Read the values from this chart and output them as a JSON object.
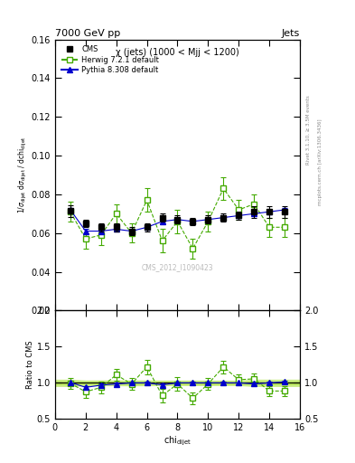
{
  "title_top": "7000 GeV pp",
  "title_top_right": "Jets",
  "annotation": "χ (jets) (1000 < Mjj < 1200)",
  "watermark": "CMS_2012_I1090423",
  "right_label": "Rivet 3.1.10, ≥ 3.5M events",
  "right_label2": "mcplots.cern.ch [arXiv:1306.3436]",
  "xlabel": "chi$_{dijet}$",
  "ylabel": "1/σ$_{dijet}$ dσ$_{dijet}$ / dchi$_{dijet}$",
  "ylabel_ratio": "Ratio to CMS",
  "ylim_main": [
    0.02,
    0.16
  ],
  "ylim_ratio": [
    0.5,
    2.0
  ],
  "xlim": [
    0,
    16
  ],
  "yticks_main": [
    0.02,
    0.04,
    0.06,
    0.08,
    0.1,
    0.12,
    0.14,
    0.16
  ],
  "yticks_ratio": [
    0.5,
    1.0,
    1.5,
    2.0
  ],
  "cms_x": [
    1,
    2,
    3,
    4,
    5,
    6,
    7,
    8,
    9,
    10,
    11,
    12,
    13,
    14,
    15
  ],
  "cms_y": [
    0.0715,
    0.065,
    0.063,
    0.063,
    0.061,
    0.063,
    0.068,
    0.067,
    0.066,
    0.067,
    0.068,
    0.069,
    0.071,
    0.071,
    0.071
  ],
  "cms_yerr": [
    0.003,
    0.002,
    0.002,
    0.002,
    0.002,
    0.002,
    0.002,
    0.002,
    0.002,
    0.002,
    0.002,
    0.002,
    0.003,
    0.003,
    0.003
  ],
  "herwig_x": [
    1,
    2,
    3,
    4,
    5,
    6,
    7,
    8,
    9,
    10,
    11,
    12,
    13,
    14,
    15
  ],
  "herwig_y": [
    0.071,
    0.057,
    0.059,
    0.07,
    0.06,
    0.077,
    0.056,
    0.066,
    0.052,
    0.066,
    0.083,
    0.072,
    0.075,
    0.063,
    0.063
  ],
  "herwig_yerr": [
    0.005,
    0.005,
    0.005,
    0.005,
    0.005,
    0.006,
    0.006,
    0.006,
    0.005,
    0.005,
    0.006,
    0.005,
    0.005,
    0.005,
    0.005
  ],
  "pythia_x": [
    1,
    2,
    3,
    4,
    5,
    6,
    7,
    8,
    9,
    10,
    11,
    12,
    13,
    14,
    15
  ],
  "pythia_y": [
    0.072,
    0.061,
    0.061,
    0.062,
    0.061,
    0.063,
    0.066,
    0.067,
    0.066,
    0.067,
    0.068,
    0.069,
    0.07,
    0.071,
    0.072
  ],
  "pythia_yerr": [
    0.001,
    0.001,
    0.001,
    0.001,
    0.001,
    0.001,
    0.001,
    0.001,
    0.001,
    0.001,
    0.001,
    0.001,
    0.001,
    0.001,
    0.001
  ],
  "herwig_ratio": [
    0.993,
    0.877,
    0.937,
    1.111,
    0.984,
    1.222,
    0.824,
    0.985,
    0.788,
    0.985,
    1.221,
    1.043,
    1.056,
    0.887,
    0.887
  ],
  "herwig_ratio_err": [
    0.075,
    0.08,
    0.08,
    0.085,
    0.085,
    0.1,
    0.09,
    0.092,
    0.08,
    0.078,
    0.09,
    0.075,
    0.075,
    0.073,
    0.073
  ],
  "pythia_ratio": [
    1.007,
    0.938,
    0.968,
    0.984,
    1.0,
    1.0,
    0.971,
    1.0,
    1.0,
    1.0,
    1.0,
    1.0,
    0.986,
    1.0,
    1.014
  ],
  "pythia_ratio_err": [
    0.02,
    0.02,
    0.02,
    0.02,
    0.02,
    0.02,
    0.02,
    0.02,
    0.02,
    0.02,
    0.02,
    0.02,
    0.02,
    0.02,
    0.02
  ],
  "cms_color": "#000000",
  "herwig_color": "#44aa00",
  "pythia_color": "#0000cc",
  "band_color_outer": "#ccee88",
  "band_color_inner": "#aadd44"
}
